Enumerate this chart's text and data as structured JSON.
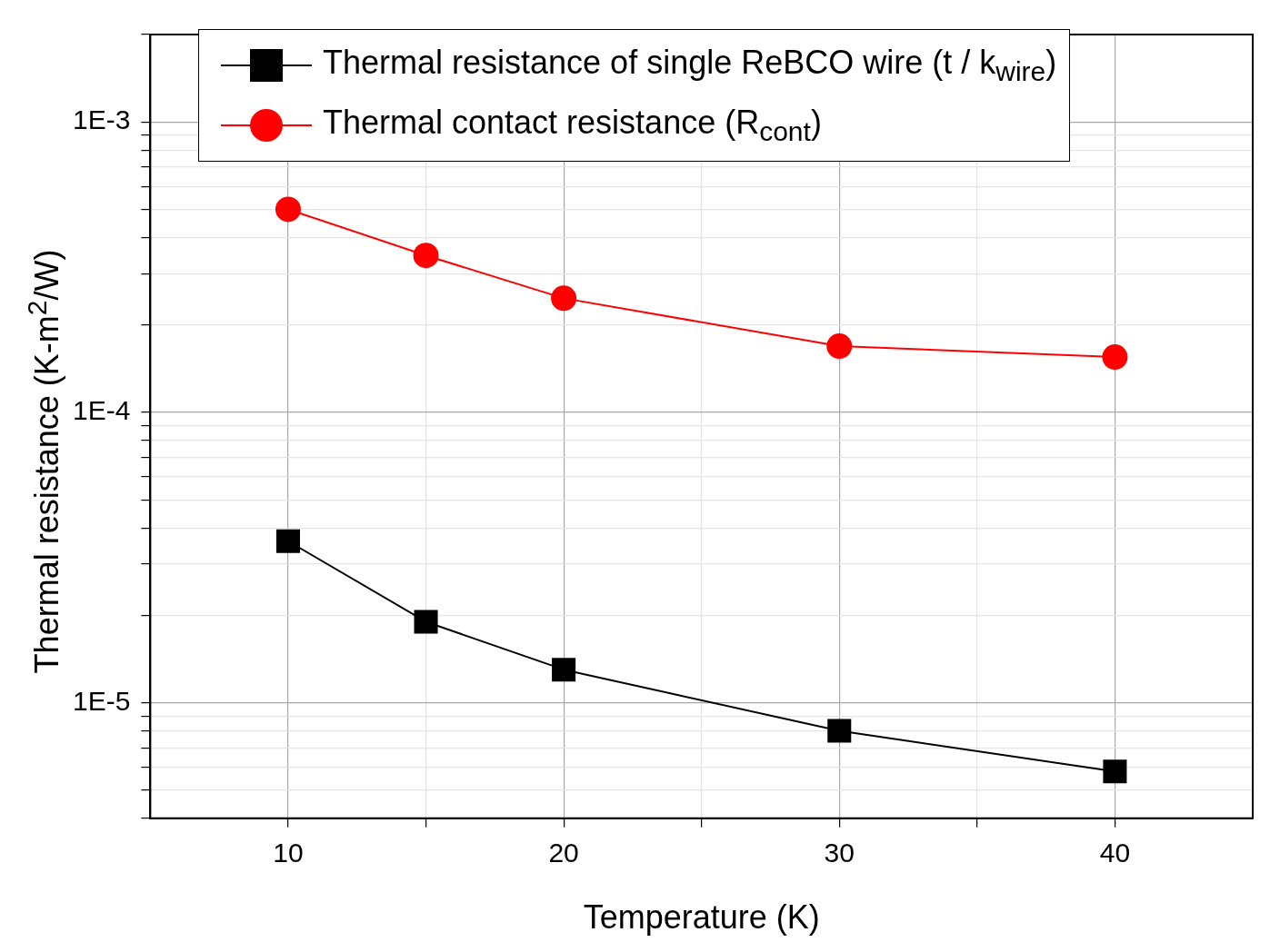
{
  "chart_data": {
    "type": "line",
    "xlabel": "Temperature (K)",
    "ylabel": "Thermal resistance (K-m$^{2}$/W)",
    "log": "y",
    "grid": true,
    "legend": "top",
    "line_style": "solid",
    "xlim": [
      5,
      45
    ],
    "xticks": [
      10,
      {
        "value": 15,
        "label": null
      },
      20,
      {
        "value": 25,
        "label": null
      },
      30,
      {
        "value": 35,
        "label": null
      },
      40
    ],
    "ylim": [
      4e-06,
      0.002
    ],
    "yticks": [
      {
        "value": 4e-06,
        "label": null
      },
      {
        "value": 5e-06,
        "label": null
      },
      {
        "value": 6e-06,
        "label": null
      },
      {
        "value": 7e-06,
        "label": null
      },
      {
        "value": 8e-06,
        "label": null
      },
      {
        "value": 9e-06,
        "label": null
      },
      {
        "value": 1e-05,
        "label": "1E-5"
      },
      {
        "value": 2e-05,
        "label": null
      },
      {
        "value": 3e-05,
        "label": null
      },
      {
        "value": 4e-05,
        "label": null
      },
      {
        "value": 5e-05,
        "label": null
      },
      {
        "value": 6e-05,
        "label": null
      },
      {
        "value": 7e-05,
        "label": null
      },
      {
        "value": 8e-05,
        "label": null
      },
      {
        "value": 9e-05,
        "label": null
      },
      {
        "value": 0.0001,
        "label": "1E-4"
      },
      {
        "value": 0.0002,
        "label": null
      },
      {
        "value": 0.0003,
        "label": null
      },
      {
        "value": 0.0004,
        "label": null
      },
      {
        "value": 0.0005,
        "label": null
      },
      {
        "value": 0.0006,
        "label": null
      },
      {
        "value": 0.0007,
        "label": null
      },
      {
        "value": 0.0008,
        "label": null
      },
      {
        "value": 0.0009,
        "label": null
      },
      {
        "value": 0.001,
        "label": "1E-3"
      },
      {
        "value": 0.002,
        "label": null
      }
    ],
    "x": [
      10,
      15,
      20,
      30,
      40
    ],
    "series": [
      {
        "name": "Thermal resistance of single ReBCO wire (t / k$_{wire}$)",
        "color": "#000000",
        "marker": "square",
        "values": [
          3.6e-05,
          1.9e-05,
          1.3e-05,
          8e-06,
          5.8e-06
        ]
      },
      {
        "name": "Thermal contact resistance (R$_{cont}$)",
        "color": "#ff0000",
        "marker": "circle",
        "values": [
          0.0005,
          0.000347,
          0.000247,
          0.000169,
          0.000155
        ]
      }
    ]
  }
}
